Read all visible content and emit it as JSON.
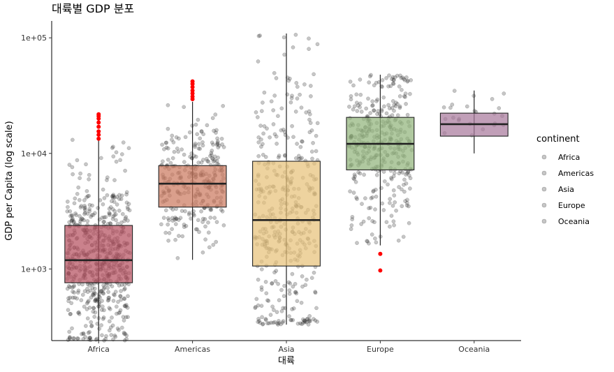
{
  "chart_data": {
    "type": "box",
    "title": "대륙별 GDP 분포",
    "xlabel": "대륙",
    "ylabel": "GDP per Capita (log scale)",
    "y_scale": "log10",
    "ylim": [
      240,
      140000
    ],
    "y_ticks": [
      {
        "value": 1000,
        "label": "1e+03"
      },
      {
        "value": 10000,
        "label": "1e+04"
      },
      {
        "value": 100000,
        "label": "1e+05"
      }
    ],
    "categories": [
      "Africa",
      "Americas",
      "Asia",
      "Europe",
      "Oceania"
    ],
    "boxes": [
      {
        "category": "Africa",
        "q1": 760,
        "median": 1190,
        "q3": 2380,
        "whisker_low": 240,
        "whisker_high": 13200,
        "outliers": [
          13400,
          14500,
          15500,
          17000,
          18500,
          20000,
          21000,
          21800
        ]
      },
      {
        "category": "Americas",
        "q1": 3430,
        "median": 5470,
        "q3": 7840,
        "whisker_low": 1200,
        "whisker_high": 28000,
        "outliers": [
          29500,
          31000,
          33000,
          35000,
          37500,
          40000,
          42000
        ]
      },
      {
        "category": "Asia",
        "q1": 1060,
        "median": 2650,
        "q3": 8550,
        "whisker_low": 330,
        "whisker_high": 109000,
        "outliers": []
      },
      {
        "category": "Europe",
        "q1": 7200,
        "median": 12100,
        "q3": 20500,
        "whisker_low": 1600,
        "whisker_high": 48000,
        "outliers": [
          1350,
          970
        ]
      },
      {
        "category": "Oceania",
        "q1": 14100,
        "median": 17900,
        "q3": 22300,
        "whisker_low": 10000,
        "whisker_high": 35000,
        "outliers": []
      }
    ],
    "points_per_group": [
      624,
      300,
      396,
      360,
      24
    ],
    "colors": {
      "Africa": "#b5515f",
      "Americas": "#cc7a60",
      "Asia": "#e8c27a",
      "Europe": "#92b47c",
      "Oceania": "#a97a9c",
      "outlier": "#ff0000",
      "jitter": "#333333"
    },
    "legend": {
      "title": "continent",
      "position": "right",
      "items": [
        "Africa",
        "Americas",
        "Asia",
        "Europe",
        "Oceania"
      ]
    },
    "grid": false
  }
}
